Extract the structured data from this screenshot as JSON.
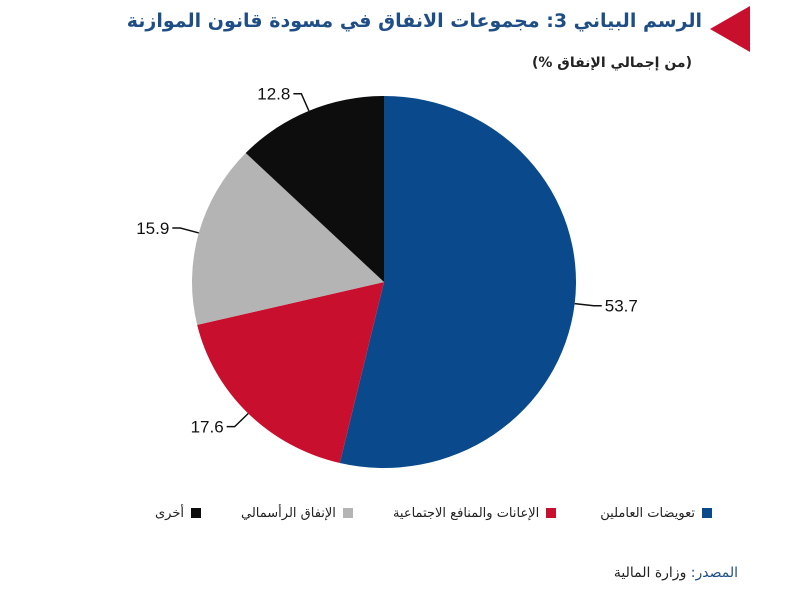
{
  "chart_data": {
    "type": "pie",
    "title": "الرسم البياني 3: مجموعات الانفاق في مسودة قانون الموازنة",
    "subtitle": "(من إجمالي الإنفاق %)",
    "categories": [
      "تعويضات العاملين",
      "الإعانات والمنافع الاجتماعية",
      "الإنفاق الرأسمالي",
      "أخرى"
    ],
    "values": [
      53.7,
      17.6,
      15.9,
      12.8
    ],
    "value_labels": [
      "53.7",
      "17.6",
      "15.9",
      "12.8"
    ],
    "colors": [
      "#0a4a8c",
      "#c8102e",
      "#b4b4b4",
      "#0d0d0d"
    ],
    "legend_position": "bottom",
    "start_angle": "12 o'clock, clockwise"
  },
  "source": {
    "label": "المصدر:",
    "text": "وزارة المالية"
  },
  "accent_color": "#c8102e"
}
